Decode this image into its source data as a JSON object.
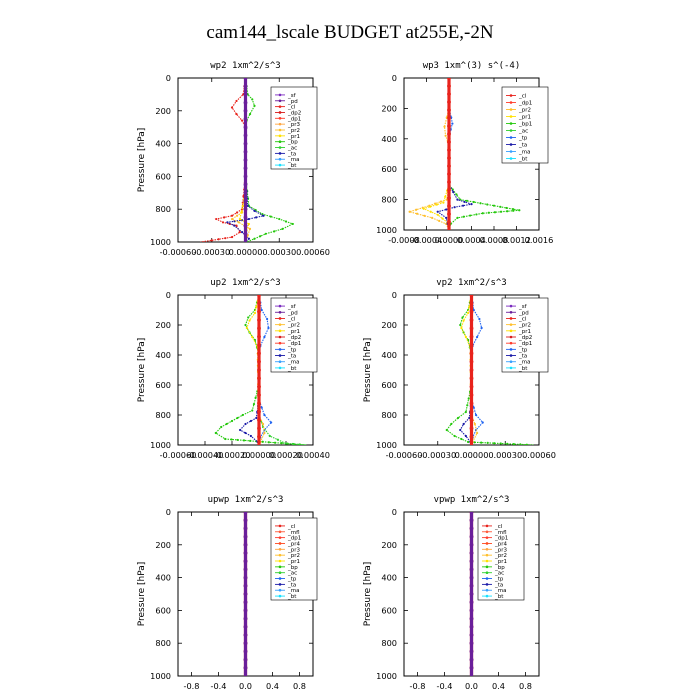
{
  "figure_title": "cam144_lscale  BUDGET at255E,-2N",
  "colors": {
    "sf": "#7a2bbf",
    "pd": "#6a1f9a",
    "cl": "#e8231c",
    "dp2": "#d81b1b",
    "dp1": "#ff3a2a",
    "pr3": "#ffa640",
    "pr2": "#ffbf2b",
    "pr1": "#ffe100",
    "pr4": "#ff4a20",
    "bp": "#24c80c",
    "ac": "#2fd12f",
    "tp": "#1f63f0",
    "ta": "#1a1aa8",
    "ma": "#37a0ff",
    "bt": "#17e0ff",
    "mfl": "#ff5a3a"
  },
  "chart_data": [
    {
      "type": "line",
      "title": "wp2  1xm^2/s^3",
      "ylabel": "Pressure [hPa]",
      "xlim": [
        -0.0006,
        0.0006
      ],
      "ylim": [
        1000,
        0
      ],
      "xticks": [
        "-0.00060",
        "-0.00030",
        "0.00000",
        "0.00030",
        "0.00060"
      ],
      "yticks": [
        "0",
        "200",
        "400",
        "600",
        "800",
        "1000"
      ],
      "legend": [
        "_sf",
        "_pd",
        "_cl",
        "_dp2",
        "_dp1",
        "_pr3",
        "_pr2",
        "_pr1",
        "_bp",
        "_ac",
        "_ta",
        "_ma",
        "_bt"
      ],
      "series": [
        {
          "name": "_cl",
          "color": "cl",
          "y": [
            0,
            100,
            140,
            180,
            220,
            260,
            300,
            400,
            600,
            800,
            840,
            860,
            880,
            900,
            940,
            970,
            990,
            1000
          ],
          "x": [
            0,
            -2e-05,
            -8e-05,
            -0.00012,
            -8e-05,
            -3e-05,
            0,
            0,
            0,
            -3e-05,
            -0.00012,
            -0.00026,
            -0.0002,
            -8e-05,
            -5e-05,
            -0.00012,
            -0.0003,
            -0.0004
          ]
        },
        {
          "name": "_bp",
          "color": "bp",
          "y": [
            0,
            100,
            130,
            170,
            220,
            260,
            400,
            600,
            780,
            830,
            860,
            890,
            920,
            950,
            980,
            1000
          ],
          "x": [
            0,
            2e-05,
            6e-05,
            8e-05,
            4e-05,
            1e-05,
            0,
            0,
            3e-05,
            0.00015,
            0.0003,
            0.00042,
            0.00033,
            0.00018,
            8e-05,
            1e-05
          ]
        },
        {
          "name": "_ta",
          "color": "ta",
          "y": [
            0,
            600,
            780,
            810,
            840,
            860,
            880,
            900,
            940,
            980,
            1000
          ],
          "x": [
            0,
            0,
            2e-05,
            8e-05,
            0.00016,
            3e-05,
            -0.00016,
            -0.0001,
            -3e-05,
            3e-05,
            0
          ]
        },
        {
          "name": "_pr2",
          "color": "pr2",
          "y": [
            0,
            700,
            820,
            860,
            880,
            920,
            960,
            1000
          ],
          "x": [
            0,
            0,
            -3e-05,
            -0.00012,
            -6e-05,
            4e-05,
            2e-05,
            0
          ]
        },
        {
          "name": "_pr1",
          "color": "pr1",
          "y": [
            0,
            700,
            860,
            890,
            930,
            1000
          ],
          "x": [
            0,
            0,
            -5e-05,
            3e-05,
            1e-05,
            0
          ]
        },
        {
          "name": "_pd",
          "color": "pd",
          "y": [
            0,
            1000
          ],
          "x": [
            0,
            0
          ]
        }
      ]
    },
    {
      "type": "line",
      "title": "wp3  1xm^(3) s^(-4)",
      "ylabel": "",
      "xlim": [
        -0.0008,
        0.0016
      ],
      "ylim": [
        1000,
        0
      ],
      "xticks": [
        "-0.0008",
        "-0.0004",
        "0.0000",
        "0.0004",
        "0.0008",
        "0.0012",
        "0.0016"
      ],
      "yticks": [
        "0",
        "200",
        "400",
        "600",
        "800",
        "1000"
      ],
      "legend": [
        "_cl",
        "_dp1",
        "_pr2",
        "_pr1",
        "_bp1",
        "_ac",
        "_tp",
        "_ta",
        "_ma",
        "_bt"
      ],
      "series": [
        {
          "name": "_pr2",
          "color": "pr2",
          "y": [
            0,
            200,
            260,
            320,
            380,
            420,
            500,
            700,
            800,
            840,
            880,
            920,
            960,
            1000
          ],
          "x": [
            0,
            0,
            -4e-05,
            -8e-05,
            -6e-05,
            -2e-05,
            0,
            0,
            -4e-05,
            -0.00035,
            -0.0007,
            -0.0003,
            -5e-05,
            0
          ]
        },
        {
          "name": "_pr1",
          "color": "pr1",
          "y": [
            0,
            700,
            820,
            860,
            900,
            950,
            1000
          ],
          "x": [
            0,
            0,
            -0.0001,
            -0.00045,
            -0.0002,
            -3e-05,
            0
          ]
        },
        {
          "name": "_bp1",
          "color": "bp",
          "y": [
            0,
            700,
            800,
            840,
            870,
            890,
            920,
            960,
            1000
          ],
          "x": [
            0,
            0,
            0.0002,
            0.0008,
            0.00125,
            0.0006,
            0.00015,
            3e-05,
            0
          ]
        },
        {
          "name": "_ta",
          "color": "ta",
          "y": [
            0,
            700,
            800,
            830,
            850,
            880,
            920,
            1000
          ],
          "x": [
            0,
            0,
            0.00015,
            0.0004,
            0.0001,
            -0.0002,
            -5e-05,
            0
          ]
        },
        {
          "name": "_tp",
          "color": "tp",
          "y": [
            0,
            200,
            260,
            300,
            340,
            400,
            500,
            1000
          ],
          "x": [
            0,
            0,
            4e-05,
            6e-05,
            3e-05,
            1e-05,
            0,
            0
          ]
        },
        {
          "name": "_cl",
          "color": "cl",
          "y": [
            0,
            1000
          ],
          "x": [
            0,
            0
          ]
        }
      ]
    },
    {
      "type": "line",
      "title": "up2  1xm^2/s^3",
      "ylabel": "Pressure [hPa]",
      "xlim": [
        -0.0006,
        0.0004
      ],
      "ylim": [
        1000,
        0
      ],
      "xticks": [
        "-0.00060",
        "-0.00040",
        "-0.00020",
        "0.00000",
        "0.00020",
        "0.00040"
      ],
      "yticks": [
        "0",
        "200",
        "400",
        "600",
        "800",
        "1000"
      ],
      "legend": [
        "_sf",
        "_pd",
        "_cl",
        "_pr2",
        "_pr1",
        "_dp2",
        "_dp1",
        "_tp",
        "_ta",
        "_ma",
        "_bt"
      ],
      "series": [
        {
          "name": "_bp",
          "color": "bp",
          "y": [
            0,
            100,
            150,
            200,
            250,
            300,
            400,
            600,
            770,
            800,
            840,
            880,
            920,
            960,
            1000
          ],
          "x": [
            0,
            -3e-05,
            -8e-05,
            -0.0001,
            -7e-05,
            -3e-05,
            0,
            0,
            -5e-05,
            -0.00012,
            -0.0002,
            -0.00028,
            -0.00032,
            -0.00025,
            0.00035
          ]
        },
        {
          "name": "_pr1",
          "color": "pr1",
          "y": [
            0,
            120,
            170,
            220,
            280,
            350,
            1000
          ],
          "x": [
            0,
            -3e-05,
            -7e-05,
            -9e-05,
            -5e-05,
            -1e-05,
            0
          ]
        },
        {
          "name": "_tp",
          "color": "tp",
          "y": [
            0,
            100,
            160,
            220,
            280,
            340,
            400,
            700,
            800,
            850,
            900,
            950,
            1000
          ],
          "x": [
            0,
            2e-05,
            6e-05,
            7e-05,
            4e-05,
            1e-05,
            0,
            0,
            4e-05,
            9e-05,
            4e-05,
            1e-05,
            0
          ]
        },
        {
          "name": "_ta",
          "color": "ta",
          "y": [
            0,
            700,
            820,
            860,
            900,
            940,
            980,
            1000
          ],
          "x": [
            0,
            0,
            -2e-05,
            -0.0001,
            -0.00014,
            -6e-05,
            -1e-05,
            0
          ]
        },
        {
          "name": "_ac",
          "color": "ac",
          "y": [
            0,
            800,
            880,
            940,
            990,
            1000
          ],
          "x": [
            0,
            0,
            3e-05,
            8e-05,
            0.0002,
            0.00035
          ]
        },
        {
          "name": "_pr2",
          "color": "pr2",
          "y": [
            0,
            800,
            860,
            920,
            980,
            1000
          ],
          "x": [
            0,
            0,
            3e-05,
            4e-05,
            1e-05,
            0
          ]
        },
        {
          "name": "_cl",
          "color": "cl",
          "y": [
            0,
            1000
          ],
          "x": [
            0,
            0
          ]
        }
      ]
    },
    {
      "type": "line",
      "title": "vp2  1xm^2/s^3",
      "ylabel": "Pressure [hPa]",
      "xlim": [
        -0.0006,
        0.0006
      ],
      "ylim": [
        1000,
        0
      ],
      "xticks": [
        "-0.00060",
        "-0.00030",
        "0.00000",
        "0.00030",
        "0.00060"
      ],
      "yticks": [
        "0",
        "200",
        "400",
        "600",
        "800",
        "1000"
      ],
      "legend": [
        "_sf",
        "_pd",
        "_cl",
        "_pr2",
        "_pr1",
        "_dp2",
        "_dp1",
        "_tp",
        "_ta",
        "_ma",
        "_bt"
      ],
      "series": [
        {
          "name": "_bp",
          "color": "bp",
          "y": [
            0,
            100,
            150,
            200,
            250,
            300,
            400,
            600,
            780,
            820,
            860,
            900,
            940,
            980,
            1000
          ],
          "x": [
            0,
            -3e-05,
            -8e-05,
            -0.0001,
            -7e-05,
            -3e-05,
            0,
            0,
            -5e-05,
            -0.00012,
            -0.00018,
            -0.00022,
            -0.00015,
            -3e-05,
            0.00055
          ]
        },
        {
          "name": "_pr1",
          "color": "pr1",
          "y": [
            0,
            120,
            170,
            220,
            280,
            350,
            1000
          ],
          "x": [
            0,
            -3e-05,
            -7e-05,
            -9e-05,
            -5e-05,
            -1e-05,
            0
          ]
        },
        {
          "name": "_tp",
          "color": "tp",
          "y": [
            0,
            100,
            160,
            220,
            280,
            340,
            400,
            700,
            800,
            850,
            900,
            950,
            1000
          ],
          "x": [
            0,
            2e-05,
            7e-05,
            9e-05,
            5e-05,
            1e-05,
            0,
            0,
            4e-05,
            0.0001,
            4e-05,
            1e-05,
            0
          ]
        },
        {
          "name": "_ta",
          "color": "ta",
          "y": [
            0,
            700,
            820,
            860,
            900,
            940,
            980,
            1000
          ],
          "x": [
            0,
            0,
            -2e-05,
            -7e-05,
            -0.0001,
            -5e-05,
            -1e-05,
            0
          ]
        },
        {
          "name": "_pr2",
          "color": "pr2",
          "y": [
            0,
            800,
            860,
            920,
            980,
            1000
          ],
          "x": [
            0,
            0,
            3e-05,
            5e-05,
            1e-05,
            0
          ]
        },
        {
          "name": "_cl",
          "color": "cl",
          "y": [
            0,
            1000
          ],
          "x": [
            0,
            0
          ]
        }
      ]
    },
    {
      "type": "line",
      "title": "upwp  1xm^2/s^3",
      "ylabel": "Pressure [hPa]",
      "xlim": [
        -1.0,
        1.0
      ],
      "ylim": [
        1000,
        0
      ],
      "xticks": [
        "-0.8",
        "-0.4",
        "0.0",
        "0.4",
        "0.8"
      ],
      "yticks": [
        "0",
        "200",
        "400",
        "600",
        "800",
        "1000"
      ],
      "legend": [
        "_cl",
        "_mfl",
        "_dp1",
        "_pr4",
        "_pr3",
        "_pr2",
        "_pr1",
        "_bp",
        "_ac",
        "_tp",
        "_ta",
        "_ma",
        "_bt"
      ],
      "series": [
        {
          "name": "_cl",
          "color": "cl",
          "y": [
            0,
            1000
          ],
          "x": [
            0,
            0
          ]
        },
        {
          "name": "_pd",
          "color": "pd",
          "y": [
            0,
            1000
          ],
          "x": [
            0,
            0
          ]
        }
      ]
    },
    {
      "type": "line",
      "title": "vpwp  1xm^2/s^3",
      "ylabel": "Pressure [hPa]",
      "xlim": [
        -1.0,
        1.0
      ],
      "ylim": [
        1000,
        0
      ],
      "xticks": [
        "-0.8",
        "-0.4",
        "0.0",
        "0.4",
        "0.8"
      ],
      "yticks": [
        "0",
        "200",
        "400",
        "600",
        "800",
        "1000"
      ],
      "legend": [
        "_cl",
        "_mfl",
        "_dp1",
        "_pr4",
        "_pr3",
        "_pr2",
        "_pr1",
        "_bp",
        "_ac",
        "_tp",
        "_ta",
        "_ma",
        "_bt"
      ],
      "series": [
        {
          "name": "_cl",
          "color": "cl",
          "y": [
            0,
            1000
          ],
          "x": [
            0,
            0
          ]
        },
        {
          "name": "_pd",
          "color": "pd",
          "y": [
            0,
            1000
          ],
          "x": [
            0,
            0
          ]
        }
      ]
    }
  ]
}
